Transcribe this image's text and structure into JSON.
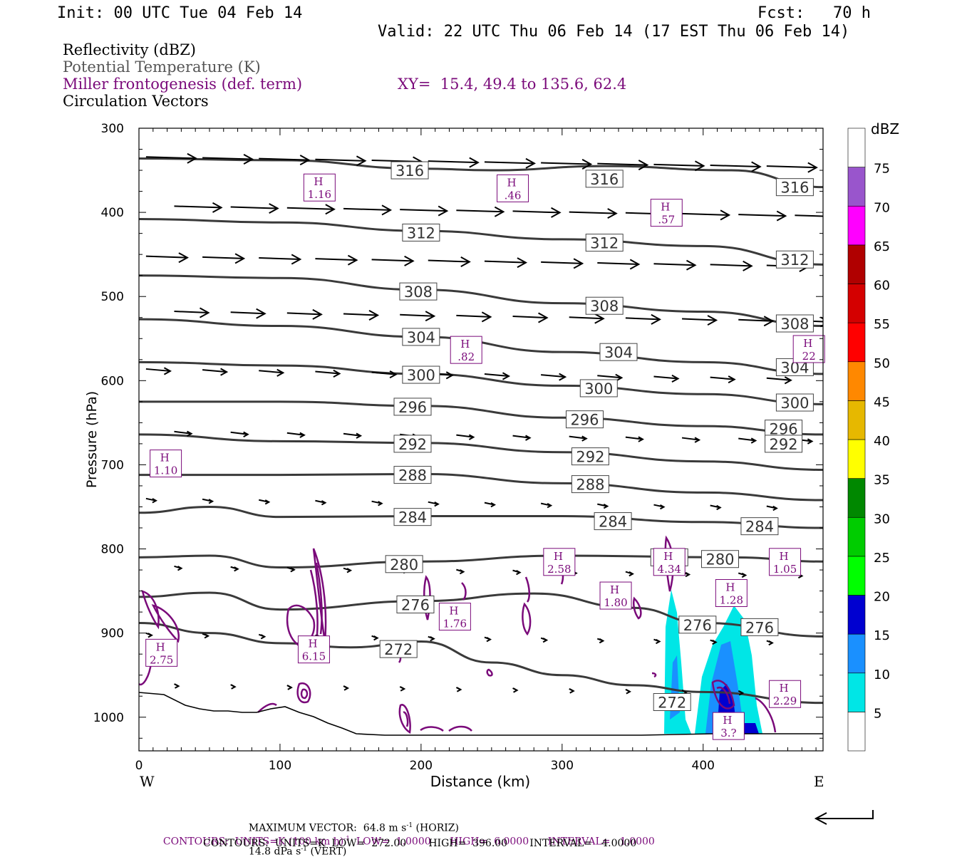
{
  "header": {
    "init": "Init: 00 UTC Tue 04 Feb 14",
    "fcst": "Fcst:   70 h",
    "valid": "Valid: 22 UTC Thu 06 Feb 14 (17 EST Thu 06 Feb 14)"
  },
  "legend": {
    "reflectivity": "Reflectivity (dBZ)",
    "theta": "Potential Temperature (K)",
    "frontogenesis": "Miller frontogenesis (def. term)",
    "xy": "XY=  15.4, 49.4 to 135.6, 62.4",
    "vectors": "Circulation Vectors"
  },
  "colors": {
    "theta_line": "#3a3a3a",
    "frontogenesis": "#7a0a7a",
    "terrain": "#000000"
  },
  "chart_data": {
    "type": "contour",
    "xlabel": "Distance (km)",
    "ylabel": "Pressure (hPa)",
    "xlim": [
      0,
      485
    ],
    "ylim": [
      300,
      1040
    ],
    "x_ticks": [
      0,
      100,
      200,
      300,
      400
    ],
    "y_ticks": [
      300,
      400,
      500,
      600,
      700,
      800,
      900,
      1000
    ],
    "left_label": "W",
    "right_label": "E",
    "isentropes": [
      {
        "value": 316,
        "points": [
          [
            0,
            336
          ],
          [
            100,
            338
          ],
          [
            200,
            348
          ],
          [
            250,
            350
          ],
          [
            330,
            345
          ],
          [
            420,
            350
          ],
          [
            485,
            370
          ]
        ],
        "labels": [
          [
            192,
            350
          ],
          [
            330,
            360
          ],
          [
            465,
            370
          ]
        ]
      },
      {
        "value": 312,
        "points": [
          [
            0,
            408
          ],
          [
            100,
            412
          ],
          [
            200,
            422
          ],
          [
            300,
            432
          ],
          [
            400,
            440
          ],
          [
            485,
            462
          ]
        ],
        "labels": [
          [
            200,
            424
          ],
          [
            330,
            436
          ],
          [
            465,
            456
          ]
        ]
      },
      {
        "value": 308,
        "points": [
          [
            0,
            475
          ],
          [
            100,
            478
          ],
          [
            200,
            492
          ],
          [
            300,
            508
          ],
          [
            400,
            518
          ],
          [
            485,
            535
          ]
        ],
        "labels": [
          [
            198,
            494
          ],
          [
            330,
            511
          ],
          [
            465,
            532
          ]
        ]
      },
      {
        "value": 304,
        "points": [
          [
            0,
            527
          ],
          [
            100,
            535
          ],
          [
            200,
            548
          ],
          [
            300,
            566
          ],
          [
            400,
            578
          ],
          [
            485,
            592
          ]
        ],
        "labels": [
          [
            200,
            548
          ],
          [
            340,
            566
          ],
          [
            465,
            584
          ]
        ]
      },
      {
        "value": 300,
        "points": [
          [
            0,
            578
          ],
          [
            100,
            582
          ],
          [
            200,
            592
          ],
          [
            300,
            606
          ],
          [
            400,
            616
          ],
          [
            485,
            628
          ]
        ],
        "labels": [
          [
            200,
            593
          ],
          [
            326,
            609
          ],
          [
            465,
            626
          ]
        ]
      },
      {
        "value": 296,
        "points": [
          [
            0,
            625
          ],
          [
            100,
            625
          ],
          [
            200,
            630
          ],
          [
            300,
            644
          ],
          [
            400,
            654
          ],
          [
            485,
            664
          ]
        ],
        "labels": [
          [
            194,
            631
          ],
          [
            316,
            646
          ],
          [
            457,
            657
          ]
        ]
      },
      {
        "value": 292,
        "points": [
          [
            0,
            664
          ],
          [
            100,
            672
          ],
          [
            200,
            674
          ],
          [
            300,
            685
          ],
          [
            400,
            696
          ],
          [
            485,
            706
          ]
        ],
        "labels": [
          [
            194,
            675
          ],
          [
            320,
            690
          ],
          [
            457,
            675
          ]
        ]
      },
      {
        "value": 288,
        "points": [
          [
            0,
            712
          ],
          [
            100,
            712
          ],
          [
            200,
            711
          ],
          [
            300,
            722
          ],
          [
            400,
            733
          ],
          [
            485,
            742
          ]
        ],
        "labels": [
          [
            194,
            712
          ],
          [
            320,
            723
          ]
        ]
      },
      {
        "value": 284,
        "points": [
          [
            0,
            757
          ],
          [
            50,
            750
          ],
          [
            100,
            762
          ],
          [
            200,
            761
          ],
          [
            300,
            761
          ],
          [
            400,
            768
          ],
          [
            485,
            775
          ]
        ],
        "labels": [
          [
            194,
            762
          ],
          [
            336,
            767
          ],
          [
            440,
            773
          ]
        ]
      },
      {
        "value": 280,
        "points": [
          [
            0,
            810
          ],
          [
            50,
            808
          ],
          [
            100,
            822
          ],
          [
            200,
            815
          ],
          [
            300,
            808
          ],
          [
            420,
            810
          ],
          [
            485,
            815
          ]
        ],
        "labels": [
          [
            188,
            818
          ],
          [
            376,
            810
          ],
          [
            412,
            812
          ]
        ]
      },
      {
        "value": 276,
        "points": [
          [
            0,
            857
          ],
          [
            50,
            852
          ],
          [
            100,
            872
          ],
          [
            200,
            862
          ],
          [
            280,
            853
          ],
          [
            350,
            870
          ],
          [
            400,
            888
          ],
          [
            485,
            904
          ]
        ],
        "labels": [
          [
            196,
            866
          ],
          [
            396,
            890
          ],
          [
            440,
            893
          ]
        ]
      },
      {
        "value": 272,
        "points": [
          [
            0,
            888
          ],
          [
            50,
            900
          ],
          [
            100,
            912
          ],
          [
            150,
            917
          ],
          [
            200,
            910
          ],
          [
            250,
            935
          ],
          [
            300,
            950
          ],
          [
            350,
            962
          ],
          [
            400,
            970
          ],
          [
            485,
            983
          ]
        ],
        "labels": [
          [
            184,
            919
          ],
          [
            378,
            982
          ]
        ]
      }
    ],
    "fronto_maxima": [
      {
        "label": "H",
        "value": "1.16",
        "x": 128,
        "y": 373
      },
      {
        "label": "H",
        "value": ".46",
        "x": 265,
        "y": 374
      },
      {
        "label": "H",
        "value": ".57",
        "x": 374,
        "y": 403
      },
      {
        "label": "H",
        "value": ".82",
        "x": 232,
        "y": 566
      },
      {
        "label": "H",
        "value": "22",
        "x": 475,
        "y": 565
      },
      {
        "label": "H",
        "value": "1.10",
        "x": 19,
        "y": 701
      },
      {
        "label": "H",
        "value": "2.58",
        "x": 298,
        "y": 818
      },
      {
        "label": "H",
        "value": "4.34",
        "x": 376,
        "y": 818
      },
      {
        "label": "H",
        "value": "1.05",
        "x": 458,
        "y": 818
      },
      {
        "label": "H",
        "value": "1.80",
        "x": 338,
        "y": 858
      },
      {
        "label": "H",
        "value": "1.28",
        "x": 420,
        "y": 855
      },
      {
        "label": "H",
        "value": "1.76",
        "x": 224,
        "y": 883
      },
      {
        "label": "H",
        "value": "2.75",
        "x": 16,
        "y": 926
      },
      {
        "label": "H",
        "value": "6.15",
        "x": 124,
        "y": 922
      },
      {
        "label": "H",
        "value": "2.29",
        "x": 458,
        "y": 975
      },
      {
        "label": "H",
        "value": "3.?",
        "x": 418,
        "y": 1013
      }
    ],
    "colorbar": {
      "title": "dBZ",
      "levels": [
        5,
        10,
        15,
        20,
        25,
        30,
        35,
        40,
        45,
        50,
        55,
        60,
        65,
        70,
        75
      ],
      "colors": [
        "#ffffff",
        "#00e6e6",
        "#1a90ff",
        "#0000d0",
        "#00ff00",
        "#00cc00",
        "#008800",
        "#ffff00",
        "#e6b800",
        "#ff8800",
        "#ff0000",
        "#d40000",
        "#b00000",
        "#ff00ff",
        "#9955cc",
        "#ffffff"
      ]
    }
  },
  "footer": {
    "max_vector": "MAXIMUM VECTOR:  64.8 m s",
    "max_vector_horiz": " (HORIZ)",
    "max_vector_vert": "14.8 dPa s",
    "max_vector_vert_tail": " (VERT)",
    "sup_minus1": "-1",
    "contours1_a": "CONTOURS:  UNITS=K (100 km h)",
    "contours1_b": "  LOW=  1.0000      HIGH=  6.0000      INTERVAL=   1.0000",
    "contours2": "CONTOURS:  UNITS=K  LOW=  272.00       HIGH=  396.00       INTERVAL=   4.0000"
  }
}
